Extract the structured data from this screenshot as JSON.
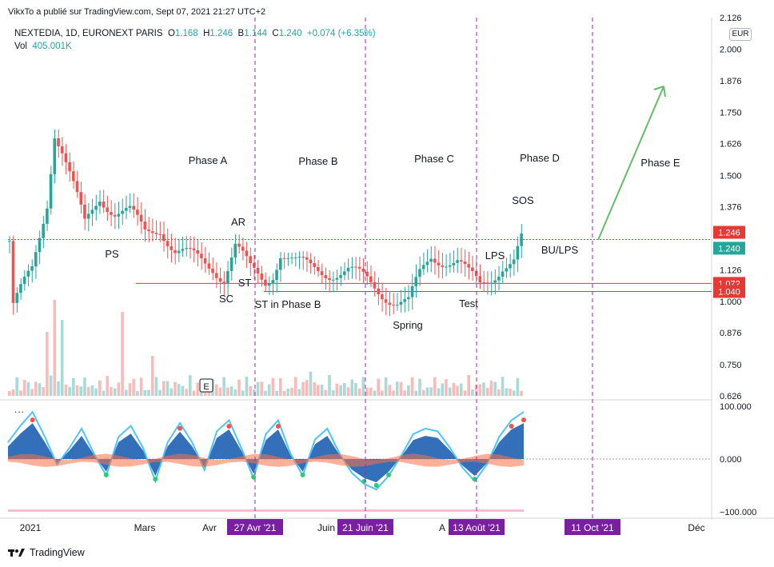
{
  "header": {
    "published": "VikxTo a  publié sur TradingView.com, Sept 07, 2021 21:27 UTC+2",
    "symbol": "NEXTEDIA, 1D, EURONEXT PARIS",
    "o_label": "O",
    "o": "1.168",
    "h_label": "H",
    "h": "1.246",
    "l_label": "B",
    "l": "1.144",
    "c_label": "C",
    "c": "1.240",
    "change": "+0.074 (+6.35%)",
    "vol_label": "Vol",
    "vol": "405.001K",
    "currency": "EUR",
    "indicator_menu": "..."
  },
  "footer": {
    "brand": "TradingView"
  },
  "colors": {
    "up": "#26a69a",
    "down": "#ef5350",
    "phase_line": "#9c27b0",
    "level_line": "#e53935",
    "arrow": "#66bb6a",
    "date_badge": "#7b1fa2"
  },
  "chart_data": [
    {
      "type": "candlestick",
      "title": "NEXTEDIA, 1D, EURONEXT PARIS",
      "y_ticks": [
        "2.126",
        "2.000",
        "1.876",
        "1.750",
        "1.626",
        "1.500",
        "1.376",
        "1.126",
        "1.000",
        "0.876",
        "0.750",
        "0.626"
      ],
      "ylim": [
        0.626,
        2.126
      ],
      "x_ticks": [
        "2021",
        "Mars",
        "Avr",
        "Juin",
        "A",
        "Déc"
      ],
      "last_price": 1.24,
      "price_badges": [
        {
          "label": "1.246",
          "value": 1.246,
          "color": "#e53935"
        },
        {
          "label": "1.240",
          "value": 1.24,
          "color": "#26a69a"
        },
        {
          "label": "1.072",
          "value": 1.072,
          "color": "#e53935"
        },
        {
          "label": "1.040",
          "value": 1.04,
          "color": "#e53935"
        }
      ],
      "horizontal_levels": [
        1.246,
        1.072,
        1.04
      ],
      "phase_dates": [
        "27 Avr '21",
        "21 Juin '21",
        "13 Août '21",
        "11 Oct '21"
      ],
      "annotations": [
        "Phase A",
        "Phase B",
        "Phase C",
        "Phase D",
        "Phase E",
        "SOS",
        "AR",
        "PS",
        "ST",
        "SC",
        "ST in Phase B",
        "Spring",
        "Test",
        "LPS",
        "BU/LPS",
        "E"
      ],
      "close_path": [
        {
          "x": 1,
          "y": 0.98
        },
        {
          "x": 6,
          "y": 1.12
        },
        {
          "x": 10,
          "y": 1.4
        },
        {
          "x": 12,
          "y": 1.68
        },
        {
          "x": 14,
          "y": 1.6
        },
        {
          "x": 17,
          "y": 1.45
        },
        {
          "x": 20,
          "y": 1.3
        },
        {
          "x": 24,
          "y": 1.42
        },
        {
          "x": 28,
          "y": 1.36
        },
        {
          "x": 32,
          "y": 1.35
        },
        {
          "x": 36,
          "y": 1.27
        },
        {
          "x": 40,
          "y": 1.3
        },
        {
          "x": 44,
          "y": 1.2
        },
        {
          "x": 49,
          "y": 1.17
        },
        {
          "x": 54,
          "y": 1.14
        },
        {
          "x": 57,
          "y": 1.1
        },
        {
          "x": 60,
          "y": 1.22
        },
        {
          "x": 64,
          "y": 1.12
        },
        {
          "x": 68,
          "y": 1.08
        },
        {
          "x": 70,
          "y": 1.12
        },
        {
          "x": 72,
          "y": 1.2
        },
        {
          "x": 76,
          "y": 1.15
        },
        {
          "x": 80,
          "y": 1.13
        },
        {
          "x": 85,
          "y": 1.12
        },
        {
          "x": 90,
          "y": 1.12
        },
        {
          "x": 95,
          "y": 1.08
        },
        {
          "x": 99,
          "y": 1.04
        },
        {
          "x": 103,
          "y": 1.0
        },
        {
          "x": 106,
          "y": 0.99
        },
        {
          "x": 109,
          "y": 1.1
        },
        {
          "x": 112,
          "y": 1.18
        },
        {
          "x": 116,
          "y": 1.17
        },
        {
          "x": 119,
          "y": 1.16
        },
        {
          "x": 122,
          "y": 1.1
        },
        {
          "x": 125,
          "y": 1.06
        },
        {
          "x": 128,
          "y": 1.1
        },
        {
          "x": 131,
          "y": 1.15
        },
        {
          "x": 134,
          "y": 1.16
        },
        {
          "x": 136,
          "y": 1.24
        }
      ]
    },
    {
      "type": "area",
      "title": "",
      "y_ticks": [
        "100.000",
        "0.000",
        "−100.000"
      ],
      "ylim": [
        -100,
        100
      ],
      "series": [
        {
          "values": [
            30,
            60,
            85,
            40,
            -10,
            20,
            55,
            10,
            -30,
            40,
            60,
            20,
            -40,
            30,
            65,
            30,
            -20,
            50,
            70,
            20,
            -35,
            45,
            70,
            10,
            -30,
            35,
            55,
            10,
            -25,
            -45,
            -55,
            -30,
            5,
            45,
            55,
            50,
            20,
            -15,
            -40,
            -10,
            40,
            70,
            85
          ]
        }
      ]
    }
  ]
}
